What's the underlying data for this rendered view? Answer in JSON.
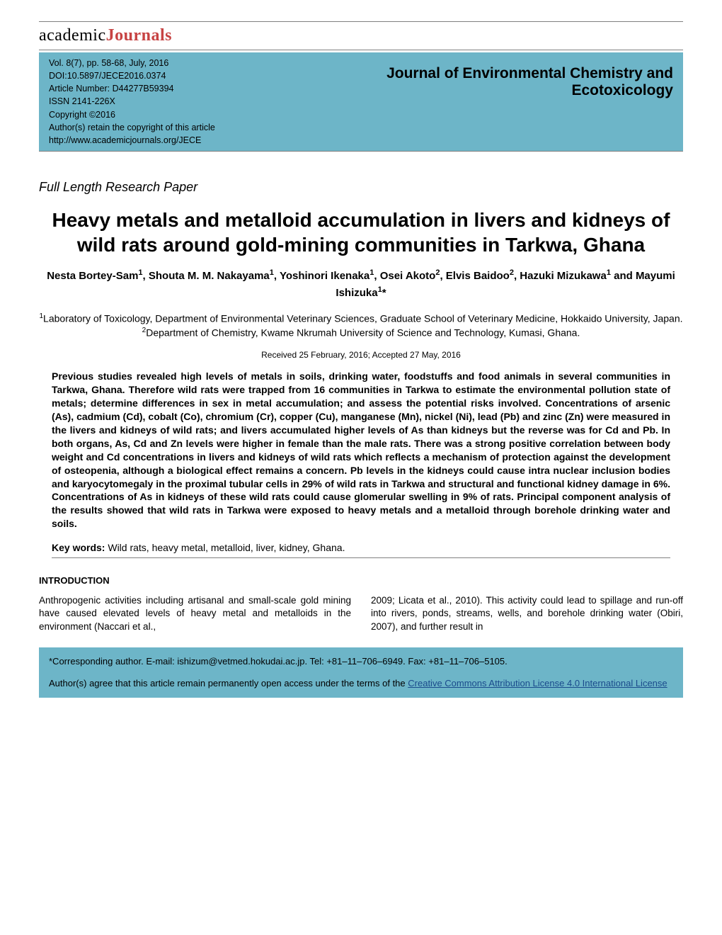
{
  "logo": {
    "part1": "academic",
    "part2": "Journals"
  },
  "header": {
    "meta_lines": [
      "Vol. 8(7), pp. 58-68, July, 2016",
      "DOI:10.5897/JECE2016.0374",
      "Article Number: D44277B59394",
      "ISSN 2141-226X",
      "Copyright ©2016",
      "Author(s) retain the copyright of this article",
      "http://www.academicjournals.org/JECE"
    ],
    "journal_name": "Journal of Environmental Chemistry and Ecotoxicology"
  },
  "paper_type": "Full Length Research Paper",
  "title": "Heavy metals and metalloid accumulation in livers and kidneys of wild rats around gold-mining communities in Tarkwa, Ghana",
  "authors_html": "Nesta Bortey-Sam<sup>1</sup>, Shouta M. M. Nakayama<sup>1</sup>, Yoshinori Ikenaka<sup>1</sup>, Osei Akoto<sup>2</sup>, Elvis Baidoo<sup>2</sup>, Hazuki Mizukawa<sup>1</sup> and Mayumi Ishizuka<sup>1</sup>*",
  "affiliations": [
    {
      "num": "1",
      "text": "Laboratory of Toxicology, Department of Environmental Veterinary Sciences, Graduate School of Veterinary Medicine, Hokkaido University, Japan."
    },
    {
      "num": "2",
      "text": "Department of Chemistry, Kwame Nkrumah University of Science and Technology, Kumasi, Ghana."
    }
  ],
  "dates": "Received 25 February, 2016; Accepted 27 May, 2016",
  "abstract": "Previous studies revealed high levels of metals in soils, drinking water, foodstuffs and food animals in several communities in Tarkwa, Ghana. Therefore wild rats were trapped from 16 communities in Tarkwa to estimate the environmental pollution state of metals; determine differences in sex in metal accumulation; and assess the potential risks involved. Concentrations of arsenic (As), cadmium (Cd), cobalt (Co), chromium (Cr), copper (Cu), manganese (Mn), nickel (Ni), lead (Pb) and zinc (Zn) were measured in the livers and kidneys of wild rats; and livers accumulated higher levels of As than kidneys but the reverse was for Cd and Pb. In both organs, As, Cd and Zn levels were higher in female than the male rats. There was a strong positive correlation between body weight and Cd concentrations in livers and kidneys of wild rats which reflects a mechanism of protection against the development of osteopenia, although a biological effect remains a concern. Pb levels in the kidneys could cause intra nuclear inclusion bodies and karyocytomegaly in the proximal tubular cells in 29% of wild rats in Tarkwa and structural and functional kidney damage in 6%. Concentrations of As in kidneys of these wild rats could cause glomerular swelling in 9% of rats. Principal component analysis of the results showed that wild rats in Tarkwa were exposed to heavy metals and a metalloid through borehole drinking water and soils.",
  "keywords": {
    "label": "Key words:",
    "text": " Wild rats, heavy metal, metalloid, liver, kidney, Ghana."
  },
  "introduction": {
    "heading": "INTRODUCTION",
    "col1": "Anthropogenic activities including artisanal and small-scale gold mining have caused elevated levels of heavy metal and metalloids in the environment (Naccari et al.,",
    "col2": "2009; Licata et al., 2010). This activity could lead to spillage and run-off into rivers, ponds, streams, wells, and borehole drinking water (Obiri, 2007), and further result in"
  },
  "footer": {
    "corresponding": "*Corresponding author. E-mail: ishizum@vetmed.hokudai.ac.jp. Tel: +81–11–706–6949. Fax: +81–11–706–5105.",
    "license_prefix": "Author(s) agree that this article remain permanently open access under the terms of the ",
    "license_link": "Creative Commons Attribution License 4.0 International License"
  },
  "colors": {
    "panel_bg": "#6db5c8",
    "rule": "#808080",
    "logo_accent": "#c74343",
    "link": "#1a4b8c"
  }
}
